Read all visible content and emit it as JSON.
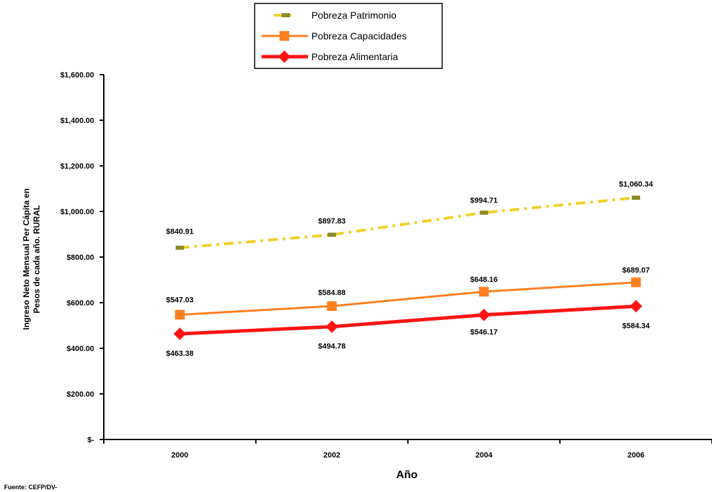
{
  "chart_data": {
    "type": "line",
    "title": "",
    "xlabel": "Año",
    "ylabel": [
      "Ingreso Neto Mensual Per Cápita en",
      "Pesos de cada año. RURAL"
    ],
    "source": "Fuente: CEFP/DV-",
    "x": [
      "2000",
      "2002",
      "2004",
      "2006"
    ],
    "ylim": [
      0,
      1600
    ],
    "y_ticks": [
      0,
      200,
      400,
      600,
      800,
      1000,
      1200,
      1400,
      1600
    ],
    "y_tick_labels": [
      "$-",
      "$200.00",
      "$400.00",
      "$600.00",
      "$800.00",
      "$1,000.00",
      "$1,200.00",
      "$1,400.00",
      "$1,600.00"
    ],
    "grid": false,
    "legend_position": "top-center",
    "series": [
      {
        "name": "Pobreza Patrimonio",
        "values": [
          840.91,
          897.83,
          994.71,
          1060.34
        ],
        "labels": [
          "$840.91",
          "$897.83",
          "$994.71",
          "$1,060.34"
        ],
        "color": "#F0D02A",
        "marker_color": "#8B8B25",
        "style": "dashed",
        "marker": "dash"
      },
      {
        "name": "Pobreza Capacidades",
        "values": [
          547.03,
          584.88,
          648.16,
          689.07
        ],
        "labels": [
          "$547.03",
          "$584.88",
          "$648.16",
          "$689.07"
        ],
        "color": "#FF7F1E",
        "style": "solid",
        "marker": "square"
      },
      {
        "name": "Pobreza Alimentaria",
        "values": [
          463.38,
          494.78,
          546.17,
          584.34
        ],
        "labels": [
          "$463.38",
          "$494.78",
          "$546.17",
          "$584.34"
        ],
        "color": "#FF1414",
        "style": "solid",
        "marker": "diamond"
      }
    ]
  }
}
